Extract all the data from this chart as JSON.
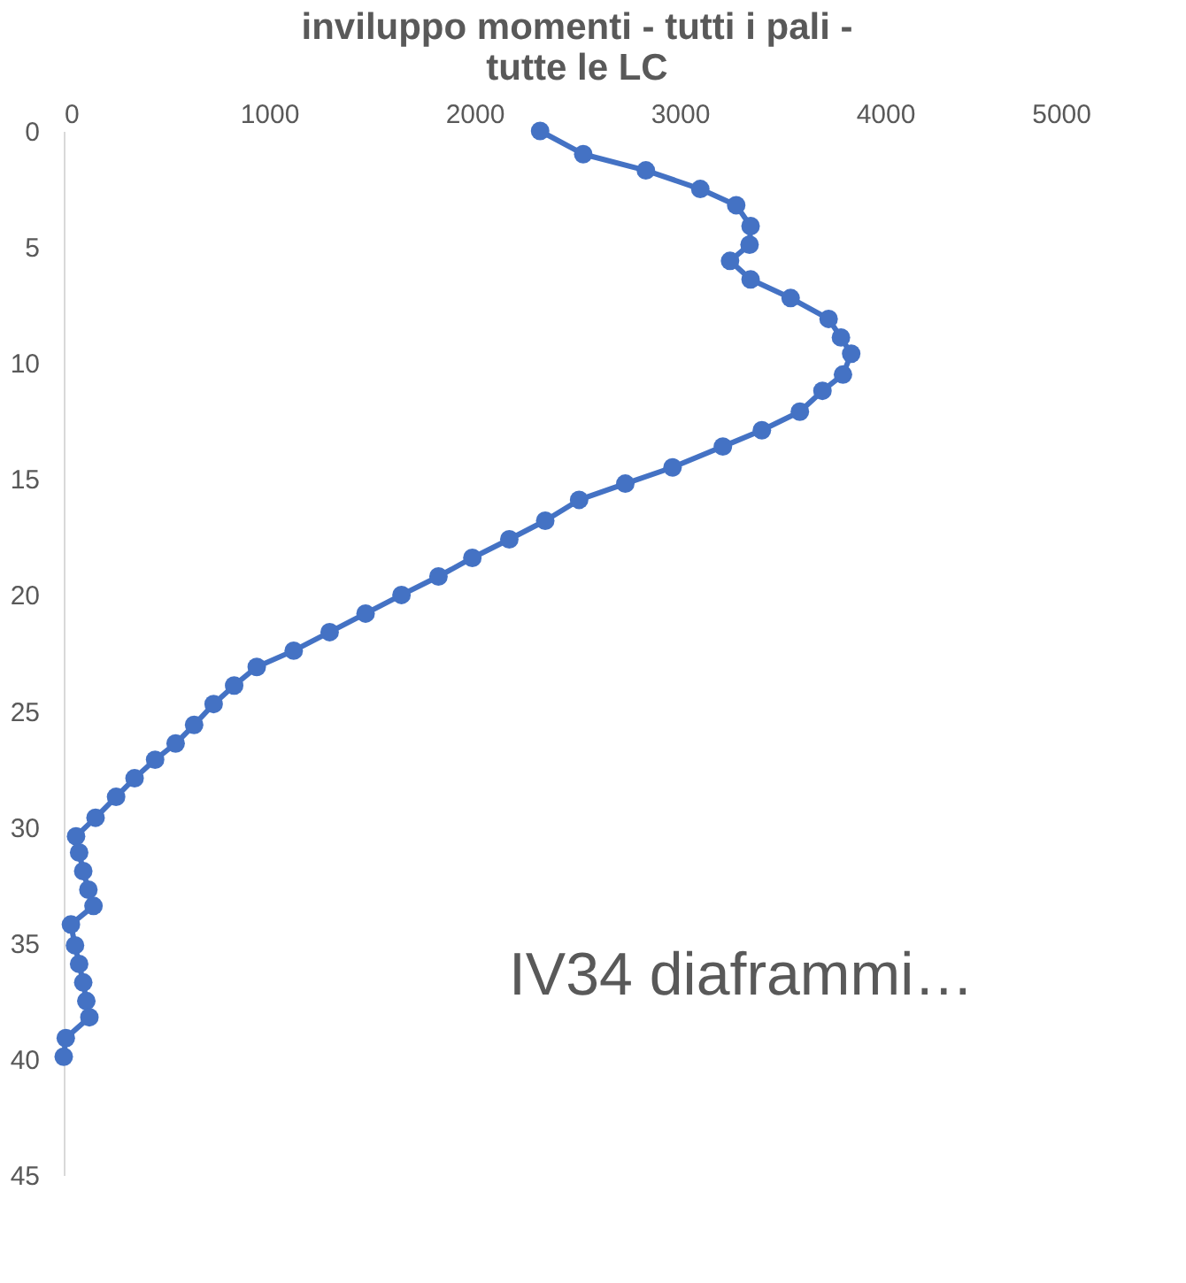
{
  "chart_data": {
    "type": "line",
    "title": [
      "inviluppo momenti - tutti i pali -",
      "tutte le LC"
    ],
    "x": [
      2320,
      2530,
      2835,
      3100,
      3275,
      3345,
      3340,
      3245,
      3345,
      3540,
      3725,
      3785,
      3835,
      3795,
      3695,
      3585,
      3400,
      3210,
      2965,
      2735,
      2510,
      2345,
      2170,
      1990,
      1825,
      1645,
      1470,
      1295,
      1120,
      940,
      830,
      730,
      635,
      545,
      445,
      345,
      255,
      155,
      60,
      75,
      95,
      120,
      145,
      35,
      55,
      75,
      95,
      110,
      125,
      10,
      0
    ],
    "series": [
      {
        "color": "#4472c4",
        "values": [
          0,
          1.0,
          1.7,
          2.5,
          3.2,
          4.1,
          4.9,
          5.6,
          6.4,
          7.2,
          8.1,
          8.9,
          9.6,
          10.5,
          11.2,
          12.1,
          12.9,
          13.6,
          14.5,
          15.2,
          15.9,
          16.8,
          17.6,
          18.4,
          19.2,
          20.0,
          20.8,
          21.6,
          22.4,
          23.1,
          23.9,
          24.7,
          25.6,
          26.4,
          27.1,
          27.9,
          28.7,
          29.6,
          30.4,
          31.1,
          31.9,
          32.7,
          33.4,
          34.2,
          35.1,
          35.9,
          36.7,
          37.5,
          38.2,
          39.1,
          39.9
        ]
      }
    ],
    "xlim": [
      0,
      5000
    ],
    "xticks": [
      0,
      1000,
      2000,
      3000,
      4000,
      5000
    ],
    "ylim": [
      45,
      0
    ],
    "yticks": [
      0,
      5,
      10,
      15,
      20,
      25,
      30,
      35,
      40,
      45
    ],
    "grid": false,
    "marker": "circle",
    "line_style": "solid",
    "annotations": [
      "IV34 diaframmi…"
    ]
  }
}
